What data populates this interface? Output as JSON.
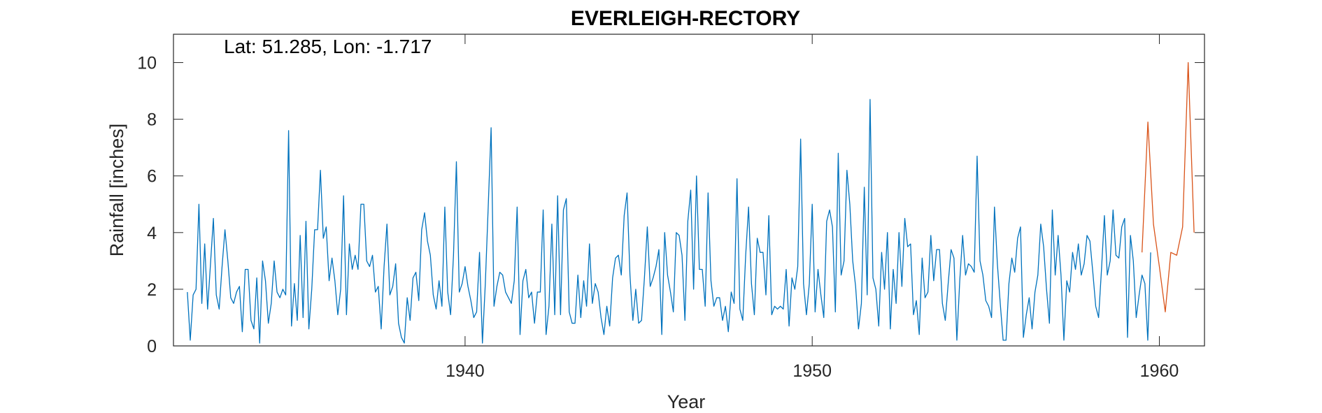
{
  "chart_data": {
    "type": "line",
    "title": "EVERLEIGH-RECTORY",
    "annotation": "Lat: 51.285, Lon: -1.717",
    "xlabel": "Year",
    "ylabel": "Rainfall [inches]",
    "xlim": [
      1931.6,
      1961.3
    ],
    "ylim": [
      0,
      11
    ],
    "xticks": [
      1940,
      1950,
      1960
    ],
    "yticks": [
      0,
      2,
      4,
      6,
      8,
      10
    ],
    "grid": false,
    "series": [
      {
        "color": "#0072BD",
        "x_start": 1932.0,
        "x_step": 0.083333,
        "values": [
          1.9,
          0.2,
          1.8,
          2.0,
          5.0,
          1.5,
          3.6,
          1.3,
          2.9,
          4.5,
          1.8,
          1.3,
          2.8,
          4.1,
          3.0,
          1.7,
          1.5,
          1.9,
          2.1,
          0.5,
          2.7,
          2.7,
          0.9,
          0.6,
          2.4,
          0.1,
          3.0,
          2.3,
          0.8,
          1.5,
          3.0,
          1.9,
          1.7,
          2.0,
          1.8,
          7.6,
          0.7,
          2.2,
          0.9,
          3.9,
          1.0,
          4.4,
          0.6,
          2.0,
          4.1,
          4.1,
          6.2,
          3.8,
          4.2,
          2.3,
          3.1,
          2.3,
          1.1,
          2.0,
          5.3,
          1.1,
          3.6,
          2.7,
          3.2,
          2.7,
          5.0,
          5.0,
          3.0,
          2.8,
          3.2,
          1.9,
          2.1,
          0.6,
          2.8,
          4.3,
          1.8,
          2.1,
          2.9,
          0.8,
          0.3,
          0.1,
          1.7,
          0.9,
          2.4,
          2.6,
          1.6,
          4.1,
          4.7,
          3.7,
          3.2,
          1.8,
          1.3,
          2.3,
          1.4,
          4.9,
          1.9,
          1.1,
          3.2,
          6.5,
          1.9,
          2.2,
          2.8,
          2.1,
          1.6,
          1.0,
          1.2,
          3.3,
          0.1,
          2.2,
          4.9,
          7.7,
          1.4,
          2.1,
          2.6,
          2.5,
          1.9,
          1.7,
          1.5,
          2.3,
          4.9,
          0.4,
          2.3,
          2.7,
          1.7,
          1.9,
          0.8,
          1.9,
          1.9,
          4.8,
          0.4,
          1.4,
          4.3,
          1.1,
          5.3,
          1.1,
          4.8,
          5.2,
          1.2,
          0.8,
          0.8,
          2.5,
          1.0,
          2.3,
          1.4,
          3.6,
          1.5,
          2.2,
          1.9,
          1.0,
          0.4,
          1.4,
          0.7,
          2.4,
          3.1,
          3.2,
          2.5,
          4.6,
          5.4,
          2.5,
          0.9,
          2.0,
          0.8,
          0.9,
          2.4,
          4.2,
          2.1,
          2.4,
          2.8,
          3.4,
          0.4,
          4.0,
          2.5,
          1.9,
          1.2,
          4.0,
          3.9,
          3.2,
          0.9,
          4.4,
          5.5,
          2.0,
          6.0,
          2.7,
          2.7,
          1.4,
          5.4,
          2.3,
          1.4,
          1.7,
          1.7,
          0.9,
          1.4,
          0.5,
          1.9,
          1.5,
          5.9,
          1.3,
          0.9,
          3.2,
          4.9,
          2.2,
          1.1,
          3.8,
          3.3,
          3.3,
          1.8,
          4.6,
          1.1,
          1.4,
          1.3,
          1.4,
          1.3,
          2.7,
          0.7,
          2.4,
          2.0,
          2.8,
          7.3,
          2.2,
          1.1,
          2.2,
          5.0,
          1.2,
          2.7,
          1.8,
          1.0,
          4.4,
          4.8,
          4.2,
          1.2,
          6.8,
          2.5,
          3.0,
          6.2,
          5.0,
          3.0,
          2.1,
          0.6,
          1.5,
          5.6,
          1.8,
          8.7,
          2.4,
          2.0,
          0.7,
          3.3,
          2.0,
          4.0,
          0.6,
          2.7,
          1.5,
          4.0,
          2.1,
          4.5,
          3.5,
          3.6,
          1.1,
          1.6,
          0.4,
          3.1,
          1.7,
          1.9,
          3.9,
          2.3,
          3.4,
          3.4,
          1.5,
          0.9,
          2.2,
          3.4,
          3.1,
          0.2,
          2.3,
          3.9,
          2.5,
          2.9,
          2.8,
          2.6,
          6.7,
          3.0,
          2.5,
          1.6,
          1.4,
          1.0,
          4.9,
          2.9,
          1.5,
          0.2,
          0.2,
          2.2,
          3.1,
          2.6,
          3.8,
          4.2,
          0.3,
          1.1,
          1.7,
          0.6,
          1.9,
          2.5,
          4.3,
          3.5,
          2.0,
          0.8,
          4.8,
          2.5,
          3.9,
          2.5,
          0.2,
          2.3,
          1.9,
          3.3,
          2.7,
          3.6,
          2.5,
          2.9,
          3.9,
          3.7,
          2.6,
          1.4,
          1.0,
          2.7,
          4.6,
          2.5,
          3.0,
          4.8,
          3.2,
          3.1,
          4.2,
          4.5,
          0.3,
          3.9,
          3.0,
          1.0,
          1.8,
          2.5,
          2.2,
          0.2,
          3.3
        ]
      },
      {
        "color": "#D95319",
        "x": [
          1959.5,
          1959.67,
          1959.83,
          1960.0,
          1960.17,
          1960.33,
          1960.5,
          1960.67,
          1960.83,
          1961.0
        ],
        "values": [
          3.3,
          7.9,
          4.3,
          2.8,
          1.2,
          3.3,
          3.2,
          4.2,
          10.0,
          4.0
        ]
      }
    ]
  }
}
